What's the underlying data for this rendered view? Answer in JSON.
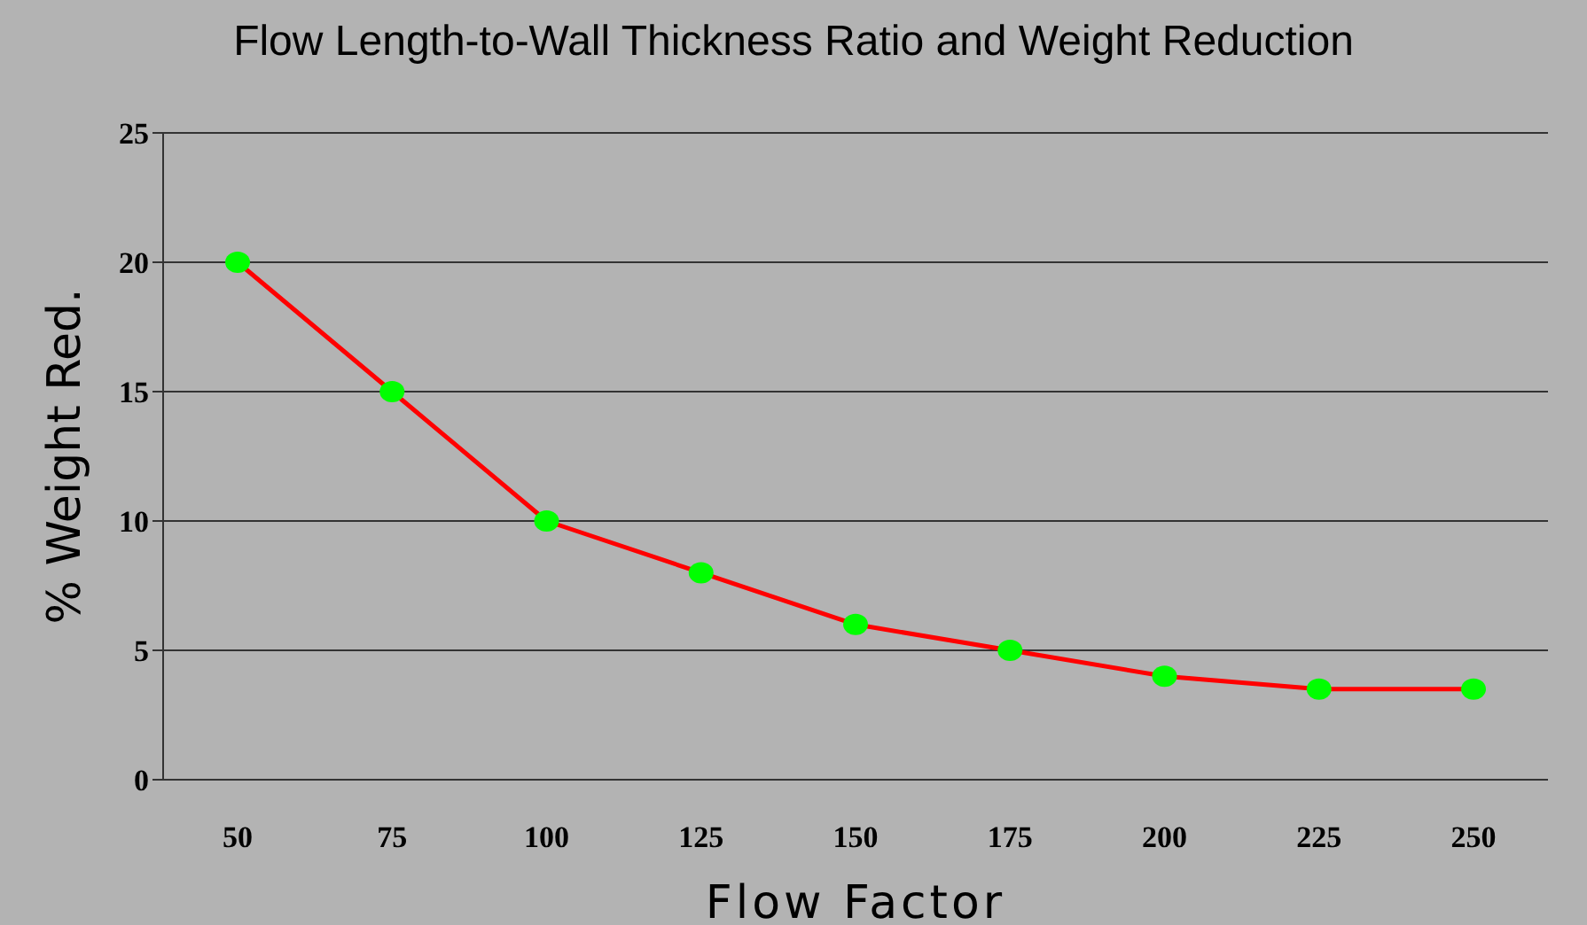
{
  "chart_data": {
    "type": "line",
    "title": "Flow Length-to-Wall Thickness Ratio and Weight Reduction",
    "xlabel": "Flow Factor",
    "ylabel": "% Weight Red.",
    "categories": [
      "50",
      "75",
      "100",
      "125",
      "150",
      "175",
      "200",
      "225",
      "250"
    ],
    "series": [
      {
        "color": "#ff0000",
        "colors": [
          "#00ff00",
          "#00ff00",
          "#00ff00",
          "#00ff00",
          "#00ff00",
          "#00ff00",
          "#00ff00",
          "#00ff00",
          "#00ff00"
        ],
        "values": [
          20,
          15,
          10,
          8,
          6,
          5,
          4,
          3.5,
          3.5
        ]
      }
    ],
    "marker": "circle",
    "ylim": [
      0,
      25
    ],
    "yticks": [
      0,
      5,
      10,
      15,
      20,
      25
    ],
    "grid": "y",
    "legend": false
  }
}
